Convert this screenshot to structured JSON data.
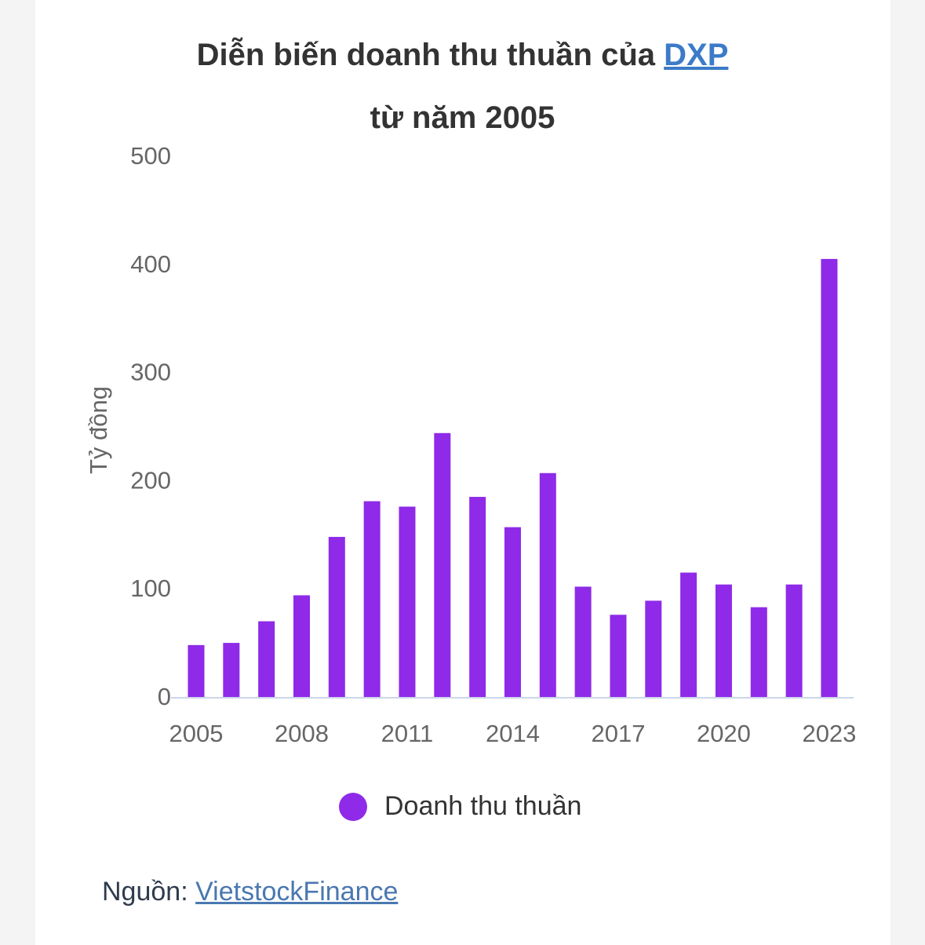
{
  "title": {
    "line1": "Diễn biến doanh thu thuần của ",
    "ticker": "DXP",
    "line2": "từ năm 2005"
  },
  "legend": {
    "label": "Doanh thu thuần"
  },
  "source": {
    "label": "Nguồn: ",
    "link": "VietstockFinance"
  },
  "chart_data": {
    "type": "bar",
    "title": "Diễn biến doanh thu thuần của DXP từ năm 2005",
    "ylabel": "Tỷ đồng",
    "xlabel": "",
    "ylim": [
      0,
      500
    ],
    "yticks": [
      0,
      100,
      200,
      300,
      400,
      500
    ],
    "xtick_labels": [
      "2005",
      "2008",
      "2011",
      "2014",
      "2017",
      "2020",
      "2023"
    ],
    "categories": [
      "2005",
      "2006",
      "2007",
      "2008",
      "2009",
      "2010",
      "2011",
      "2012",
      "2013",
      "2014",
      "2015",
      "2016",
      "2017",
      "2018",
      "2019",
      "2020",
      "2021",
      "2022",
      "2023"
    ],
    "series": [
      {
        "name": "Doanh thu thuần",
        "color": "#8e2ae8",
        "values": [
          48,
          50,
          70,
          94,
          148,
          181,
          176,
          244,
          185,
          157,
          207,
          102,
          76,
          89,
          115,
          104,
          83,
          104,
          405
        ]
      }
    ],
    "grid": false,
    "legend_position": "bottom"
  }
}
